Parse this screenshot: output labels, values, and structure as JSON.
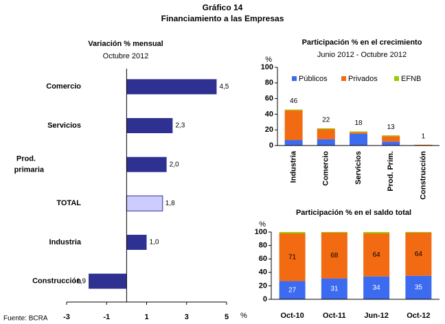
{
  "header": {
    "title": "Gráfico 14",
    "subtitle": "Financiamiento a las Empresas"
  },
  "source": "Fuente: BCRA",
  "chart_data": [
    {
      "type": "hbar",
      "title": "Variación % mensual",
      "subtitle": "Octubre 2012",
      "x_label": "%",
      "categories": [
        "Comercio",
        "Servicios",
        "Prod. primaria",
        "TOTAL",
        "Industria",
        "Construcción"
      ],
      "values": [
        4.5,
        2.3,
        2.0,
        1.8,
        1.0,
        -1.9
      ],
      "value_labels": [
        "4,5",
        "2,3",
        "2,0",
        "1,8",
        "1,0",
        "-1,9"
      ],
      "colors": [
        "#2e3192",
        "#2e3192",
        "#2e3192",
        "#ccccff",
        "#2e3192",
        "#2e3192"
      ],
      "xlim": [
        -3,
        5
      ],
      "xticks": [
        -3,
        -1,
        1,
        3,
        5
      ]
    },
    {
      "type": "stacked_bar",
      "title": "Participación % en el crecimiento",
      "subtitle": "Junio 2012 - Octubre 2012",
      "y_label": "%",
      "categories": [
        "Industria",
        "Comercio",
        "Servicios",
        "Prod. Prim.",
        "Construcción"
      ],
      "series": [
        {
          "name": "Públicos",
          "color": "#3d6bf0",
          "values": [
            7,
            8,
            15,
            5,
            0
          ]
        },
        {
          "name": "Privados",
          "color": "#f26b12",
          "values": [
            38,
            13,
            2,
            7,
            1
          ]
        },
        {
          "name": "EFNB",
          "color": "#99cc00",
          "values": [
            1,
            1,
            1,
            1,
            0
          ]
        }
      ],
      "totals": [
        46,
        22,
        18,
        13,
        1
      ],
      "ylim": [
        0,
        100
      ],
      "yticks": [
        0,
        20,
        40,
        60,
        80,
        100
      ],
      "legend": "top"
    },
    {
      "type": "stacked_bar",
      "title": "Participación % en el saldo total",
      "y_label": "%",
      "categories": [
        "Oct-10",
        "Oct-11",
        "Jun-12",
        "Oct-12"
      ],
      "series": [
        {
          "color": "#3d6bf0",
          "values": [
            27,
            31,
            34,
            35
          ]
        },
        {
          "color": "#f26b12",
          "values": [
            71,
            68,
            64,
            64
          ]
        },
        {
          "color": "#99cc00",
          "values": [
            2,
            1,
            2,
            1
          ]
        }
      ],
      "ylim": [
        0,
        100
      ],
      "yticks": [
        0,
        20,
        40,
        60,
        80,
        100
      ]
    }
  ]
}
